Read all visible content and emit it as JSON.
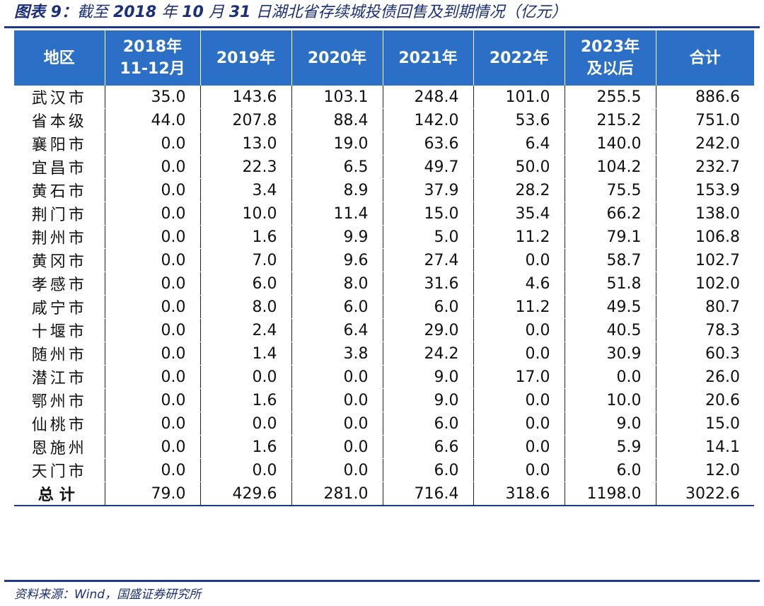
{
  "title": {
    "prefix": "图表 9：",
    "text1": "截至 ",
    "year": "2018",
    "text2": " 年 ",
    "month": "10",
    "text3": " 月 ",
    "day": "31",
    "text4": " 日湖北省存续城投债回售及到期情况（亿元）"
  },
  "table": {
    "headers": [
      "地区",
      "2018年\n11-12月",
      "2019年",
      "2020年",
      "2021年",
      "2022年",
      "2023年\n及以后",
      "合计"
    ],
    "rows": [
      [
        "武汉市",
        "35.0",
        "143.6",
        "103.1",
        "248.4",
        "101.0",
        "255.5",
        "886.6"
      ],
      [
        "省本级",
        "44.0",
        "207.8",
        "88.4",
        "142.0",
        "53.6",
        "215.2",
        "751.0"
      ],
      [
        "襄阳市",
        "0.0",
        "13.0",
        "19.0",
        "63.6",
        "6.4",
        "140.0",
        "242.0"
      ],
      [
        "宜昌市",
        "0.0",
        "22.3",
        "6.5",
        "49.7",
        "50.0",
        "104.2",
        "232.7"
      ],
      [
        "黄石市",
        "0.0",
        "3.4",
        "8.9",
        "37.9",
        "28.2",
        "75.5",
        "153.9"
      ],
      [
        "荆门市",
        "0.0",
        "10.0",
        "11.4",
        "15.0",
        "35.4",
        "66.2",
        "138.0"
      ],
      [
        "荆州市",
        "0.0",
        "1.6",
        "9.9",
        "5.0",
        "11.2",
        "79.1",
        "106.8"
      ],
      [
        "黄冈市",
        "0.0",
        "7.0",
        "9.6",
        "27.4",
        "0.0",
        "58.7",
        "102.7"
      ],
      [
        "孝感市",
        "0.0",
        "6.0",
        "8.0",
        "31.6",
        "4.6",
        "51.8",
        "102.0"
      ],
      [
        "咸宁市",
        "0.0",
        "8.0",
        "6.0",
        "6.0",
        "11.2",
        "49.5",
        "80.7"
      ],
      [
        "十堰市",
        "0.0",
        "2.4",
        "6.4",
        "29.0",
        "0.0",
        "40.5",
        "78.3"
      ],
      [
        "随州市",
        "0.0",
        "1.4",
        "3.8",
        "24.2",
        "0.0",
        "30.9",
        "60.3"
      ],
      [
        "潜江市",
        "0.0",
        "0.0",
        "0.0",
        "9.0",
        "17.0",
        "0.0",
        "26.0"
      ],
      [
        "鄂州市",
        "0.0",
        "1.6",
        "0.0",
        "9.0",
        "0.0",
        "10.0",
        "20.6"
      ],
      [
        "仙桃市",
        "0.0",
        "0.0",
        "0.0",
        "6.0",
        "0.0",
        "9.0",
        "15.0"
      ],
      [
        "恩施州",
        "0.0",
        "1.6",
        "0.0",
        "6.6",
        "0.0",
        "5.9",
        "14.1"
      ],
      [
        "天门市",
        "0.0",
        "0.0",
        "0.0",
        "6.0",
        "0.0",
        "6.0",
        "12.0"
      ]
    ],
    "total": [
      "总计",
      "79.0",
      "429.6",
      "281.0",
      "716.4",
      "318.6",
      "1198.0",
      "3022.6"
    ]
  },
  "source": "资料来源：Wind，国盛证券研究所",
  "colors": {
    "header_bg": "#2b6fc7",
    "rule": "#1d3a8a",
    "title": "#1b2f7a"
  }
}
